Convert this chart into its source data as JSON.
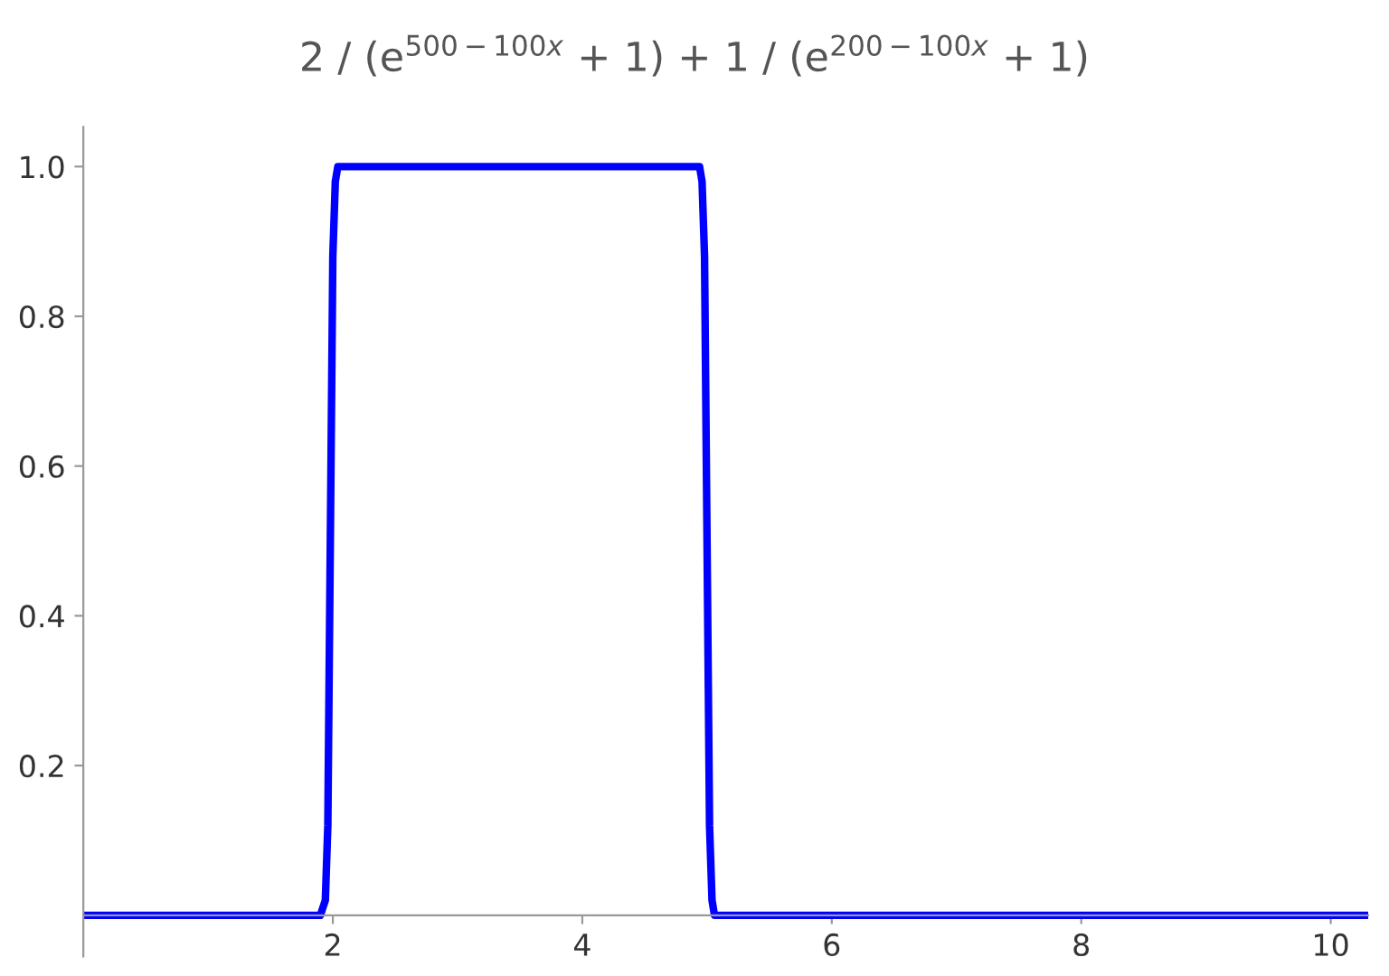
{
  "chart_data": {
    "type": "line",
    "title": "2 / (e$^{500−100x}$ + 1) + 1 / (e$^{200−100x}$ + 1)",
    "x": [
      0,
      1.9,
      1.94,
      1.96,
      1.98,
      2.0,
      2.02,
      2.04,
      2.06,
      2.1,
      4.9,
      4.94,
      4.96,
      4.98,
      5.0,
      5.02,
      5.04,
      5.06,
      5.1,
      10.3
    ],
    "series": [
      {
        "color": "#0000ff",
        "values": [
          0,
          0,
          0.02,
          0.12,
          0.5,
          0.88,
          0.98,
          1.0,
          1.0,
          1.0,
          1.0,
          1.0,
          0.98,
          0.88,
          0.5,
          0.12,
          0.02,
          0,
          0,
          0
        ]
      }
    ],
    "xlim": [
      0,
      10.3
    ],
    "ylim": [
      -0.055,
      1.053
    ],
    "xticks": [
      2,
      4,
      6,
      8,
      10
    ],
    "yticks": [
      0.2,
      0.4,
      0.6,
      0.8,
      {
        "value": 1.0,
        "label": "1.0"
      }
    ],
    "grid": false,
    "legend": false,
    "marker": "none",
    "line_style": "solid"
  }
}
